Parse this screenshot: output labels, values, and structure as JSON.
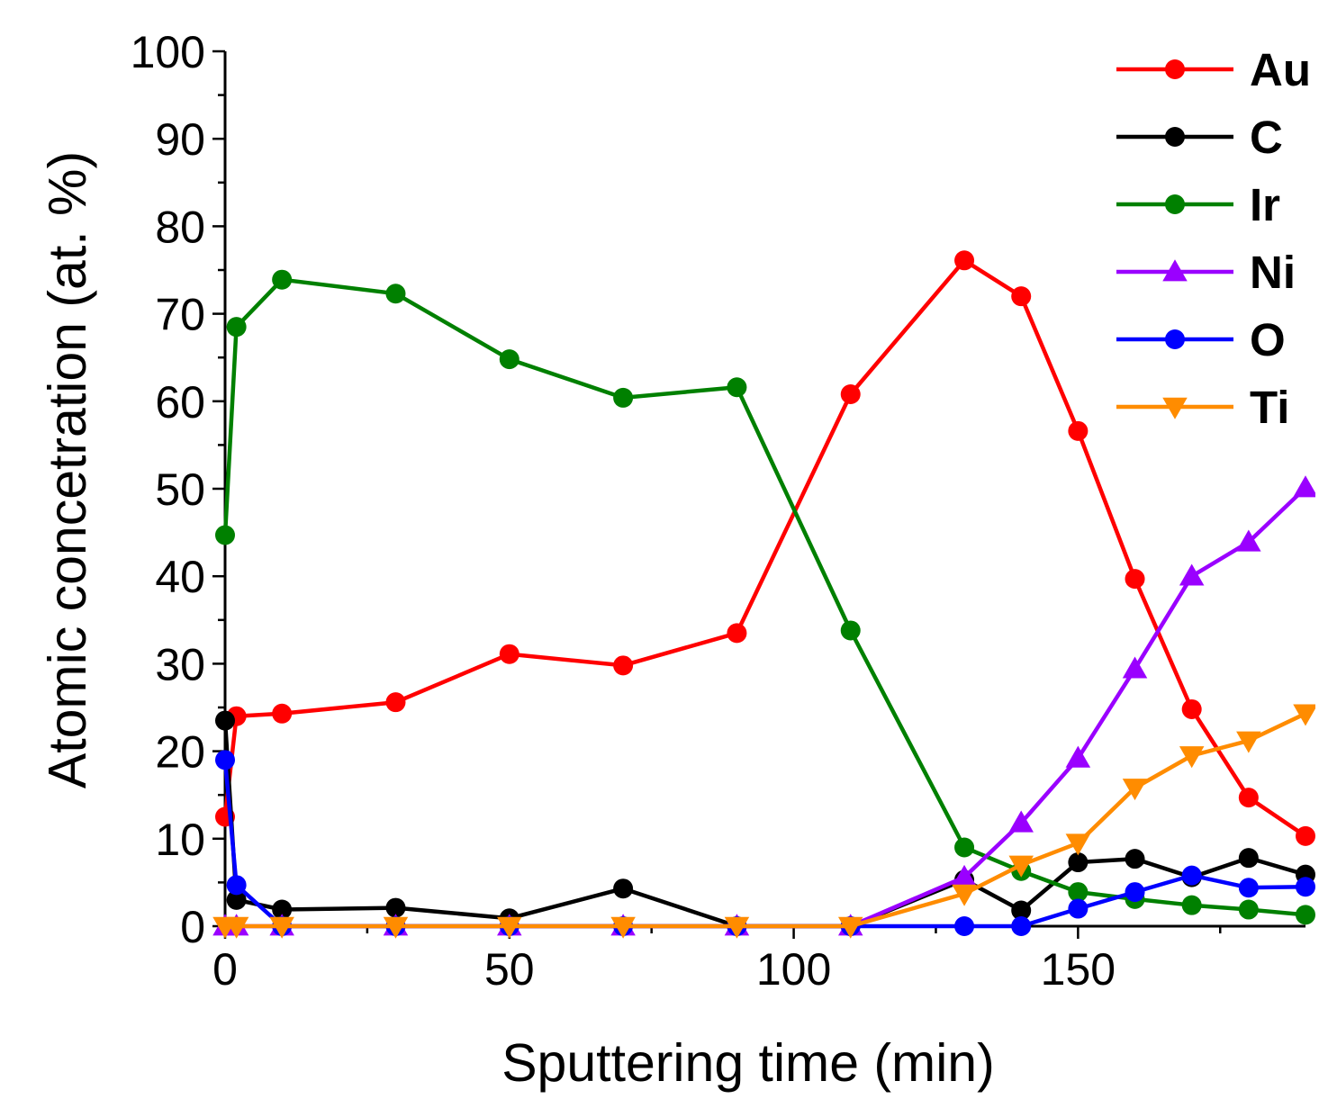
{
  "chart_data": {
    "type": "line",
    "title": "",
    "xlabel": "Sputtering time (min)",
    "ylabel": "Atomic concetration (at. %)",
    "xlim": [
      0,
      190
    ],
    "ylim": [
      0,
      100
    ],
    "x_ticks": [
      0,
      50,
      100,
      150
    ],
    "x_tick_labels": [
      "0",
      "50",
      "100",
      "150"
    ],
    "y_ticks": [
      0,
      10,
      20,
      30,
      40,
      50,
      60,
      70,
      80,
      90,
      100
    ],
    "y_tick_labels": [
      "0",
      "10",
      "20",
      "30",
      "40",
      "50",
      "60",
      "70",
      "80",
      "90",
      "100"
    ],
    "legend_position": "top-right",
    "grid": false,
    "series": [
      {
        "name": "Au",
        "color": "#ff0000",
        "marker": "circle",
        "x": [
          0,
          2,
          10,
          30,
          50,
          70,
          90,
          110,
          130,
          140,
          150,
          160,
          170,
          180,
          190
        ],
        "y": [
          12.5,
          24,
          24.3,
          25.6,
          31.1,
          29.8,
          33.5,
          60.8,
          76.1,
          72,
          56.6,
          39.7,
          24.8,
          14.7,
          10.3
        ]
      },
      {
        "name": "C",
        "color": "#000000",
        "marker": "circle",
        "x": [
          0,
          2,
          10,
          30,
          50,
          70,
          90,
          110,
          130,
          140,
          150,
          160,
          170,
          180,
          190
        ],
        "y": [
          23.5,
          3,
          1.9,
          2.1,
          0.9,
          4.3,
          0,
          0,
          5.3,
          1.8,
          7.3,
          7.7,
          5.6,
          7.8,
          5.9
        ]
      },
      {
        "name": "Ir",
        "color": "#008000",
        "marker": "circle",
        "x": [
          0,
          2,
          10,
          30,
          50,
          70,
          90,
          110,
          130,
          140,
          150,
          160,
          170,
          180,
          190
        ],
        "y": [
          44.7,
          68.5,
          73.9,
          72.3,
          64.8,
          60.4,
          61.6,
          33.8,
          9,
          6.3,
          3.9,
          3.1,
          2.4,
          1.9,
          1.3
        ]
      },
      {
        "name": "Ni",
        "color": "#9a00ff",
        "marker": "triangle-up",
        "x": [
          0,
          2,
          10,
          30,
          50,
          70,
          90,
          110,
          130,
          140,
          150,
          160,
          170,
          180,
          190
        ],
        "y": [
          0,
          0,
          0,
          0,
          0,
          0,
          0,
          0,
          5.6,
          11.8,
          19.2,
          29.4,
          40,
          43.9,
          50.1
        ]
      },
      {
        "name": "O",
        "color": "#0000ff",
        "marker": "circle",
        "x": [
          0,
          2,
          10,
          30,
          50,
          70,
          90,
          110,
          130,
          140,
          150,
          160,
          170,
          180,
          190
        ],
        "y": [
          19,
          4.7,
          0,
          0,
          0,
          0,
          0,
          0,
          0,
          0,
          2,
          3.9,
          5.8,
          4.4,
          4.5
        ]
      },
      {
        "name": "Ti",
        "color": "#ff8c00",
        "marker": "triangle-down",
        "x": [
          0,
          2,
          10,
          30,
          50,
          70,
          90,
          110,
          130,
          140,
          150,
          160,
          170,
          180,
          190
        ],
        "y": [
          0,
          0,
          0,
          0,
          0,
          0,
          0,
          0,
          3.7,
          7,
          9.5,
          15.8,
          19.5,
          21.2,
          24.3
        ]
      }
    ]
  }
}
